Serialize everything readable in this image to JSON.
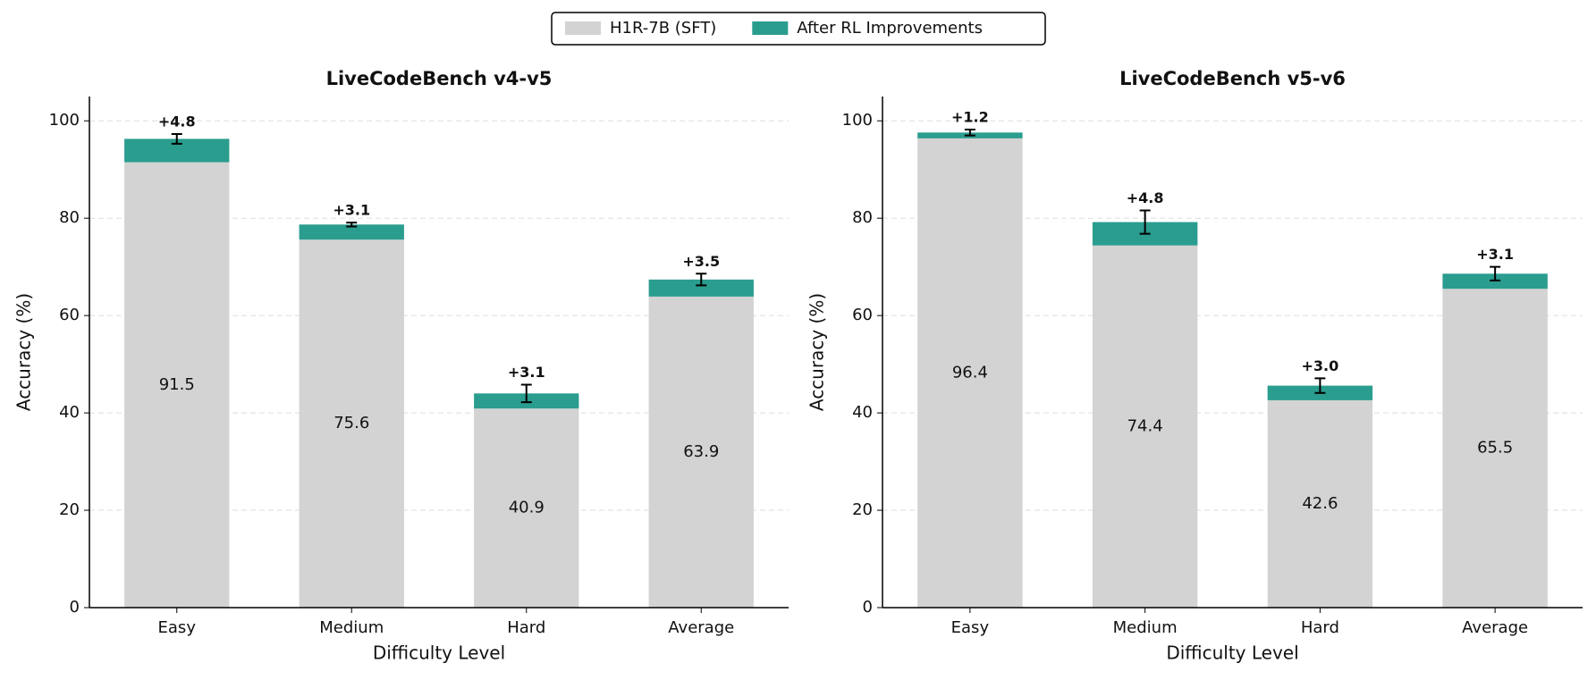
{
  "chart_data": [
    {
      "type": "stacked_bar",
      "title": "LiveCodeBench v4-v5",
      "x_label": "Difficulty Level",
      "y_label": "Accuracy (%)",
      "categories": [
        "Easy",
        "Medium",
        "Hard",
        "Average"
      ],
      "series": [
        {
          "name": "H1R-7B (SFT)",
          "color": "#d3d3d3",
          "values": [
            91.5,
            75.6,
            40.9,
            63.9
          ]
        },
        {
          "name": "After RL Improvements",
          "color": "#2a9d8f",
          "values": [
            4.8,
            3.1,
            3.1,
            3.5
          ],
          "value_labels": [
            "+4.8",
            "+3.1",
            "+3.1",
            "+3.5"
          ],
          "errors": [
            1.0,
            0.4,
            1.8,
            1.2
          ]
        }
      ],
      "ylim": [
        0,
        105
      ],
      "yticks": [
        0,
        20,
        40,
        60,
        80,
        100
      ],
      "grid": true,
      "legend": "upper center"
    },
    {
      "type": "stacked_bar",
      "title": "LiveCodeBench v5-v6",
      "x_label": "Difficulty Level",
      "y_label": "Accuracy (%)",
      "categories": [
        "Easy",
        "Medium",
        "Hard",
        "Average"
      ],
      "series": [
        {
          "name": "H1R-7B (SFT)",
          "color": "#d3d3d3",
          "values": [
            96.4,
            74.4,
            42.6,
            65.5
          ]
        },
        {
          "name": "After RL Improvements",
          "color": "#2a9d8f",
          "values": [
            1.2,
            4.8,
            3.0,
            3.1
          ],
          "value_labels": [
            "+1.2",
            "+4.8",
            "+3.0",
            "+3.1"
          ],
          "errors": [
            0.6,
            2.4,
            1.5,
            1.4
          ]
        }
      ],
      "ylim": [
        0,
        105
      ],
      "yticks": [
        0,
        20,
        40,
        60,
        80,
        100
      ],
      "grid": true
    }
  ]
}
